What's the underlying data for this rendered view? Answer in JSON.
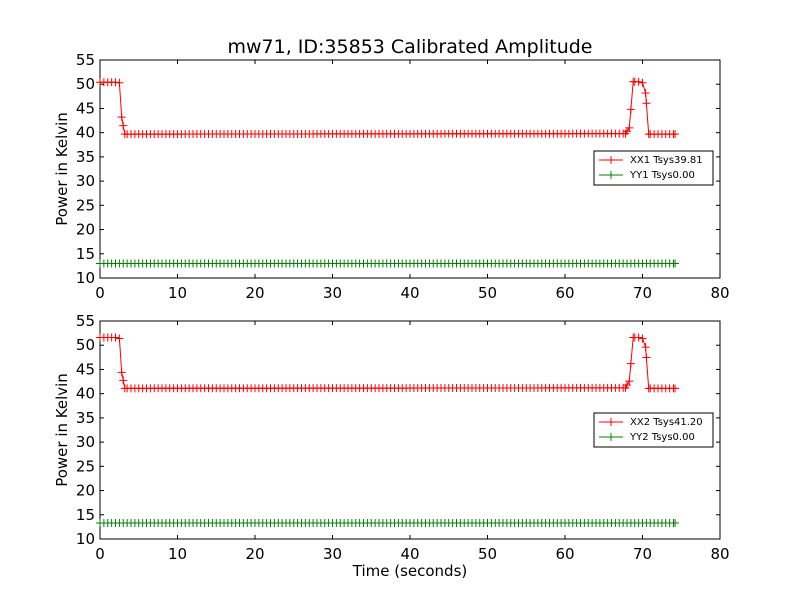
{
  "title": "mw71, ID:35853 Calibrated Amplitude",
  "chart_data": [
    {
      "type": "line",
      "title": "mw71, ID:35853 Calibrated Amplitude",
      "xlabel": "",
      "ylabel": "Power in Kelvin",
      "xlim": [
        0,
        80
      ],
      "ylim": [
        10,
        55
      ],
      "xticks": [
        "0",
        "10",
        "20",
        "30",
        "40",
        "50",
        "60",
        "70",
        "80"
      ],
      "yticks": [
        "10",
        "15",
        "20",
        "25",
        "30",
        "35",
        "40",
        "45",
        "50",
        "55"
      ],
      "grid": false,
      "legend_position": "center-right",
      "series": [
        {
          "name": "XX1 Tsys39.81",
          "color": "#ff0000",
          "marker": "plus",
          "levels": {
            "high": 50.4,
            "low": 39.7
          },
          "points": [
            [
              0.0,
              50.4
            ],
            [
              0.5,
              50.4
            ],
            [
              1.0,
              50.4
            ],
            [
              1.5,
              50.4
            ],
            [
              2.0,
              50.4
            ],
            [
              2.5,
              50.3
            ],
            [
              2.8,
              43.2
            ],
            [
              3.2,
              39.7
            ],
            [
              67.8,
              39.8
            ],
            [
              68.3,
              41.0
            ],
            [
              68.8,
              50.5
            ],
            [
              69.5,
              50.5
            ],
            [
              70.0,
              50.3
            ],
            [
              70.4,
              48.2
            ],
            [
              70.8,
              39.7
            ],
            [
              74.2,
              39.7
            ]
          ]
        },
        {
          "name": "YY1 Tsys0.00",
          "color": "#008000",
          "marker": "plus",
          "points": [
            [
              0.0,
              13.0
            ],
            [
              74.2,
              13.0
            ]
          ]
        }
      ],
      "x_end": 74.2,
      "x_step": 0.5
    },
    {
      "type": "line",
      "title": "",
      "xlabel": "Time (seconds)",
      "ylabel": "Power in Kelvin",
      "xlim": [
        0,
        80
      ],
      "ylim": [
        10,
        55
      ],
      "xticks": [
        "0",
        "10",
        "20",
        "30",
        "40",
        "50",
        "60",
        "70",
        "80"
      ],
      "yticks": [
        "10",
        "15",
        "20",
        "25",
        "30",
        "35",
        "40",
        "45",
        "50",
        "55"
      ],
      "grid": false,
      "legend_position": "center-right",
      "series": [
        {
          "name": "XX2 Tsys41.20",
          "color": "#ff0000",
          "marker": "plus",
          "levels": {
            "high": 51.6,
            "low": 41.1
          },
          "points": [
            [
              0.0,
              51.6
            ],
            [
              0.5,
              51.6
            ],
            [
              1.0,
              51.6
            ],
            [
              1.5,
              51.6
            ],
            [
              2.0,
              51.6
            ],
            [
              2.5,
              51.4
            ],
            [
              2.8,
              44.4
            ],
            [
              3.2,
              41.1
            ],
            [
              67.8,
              41.2
            ],
            [
              68.3,
              42.6
            ],
            [
              68.8,
              51.6
            ],
            [
              69.5,
              51.6
            ],
            [
              70.0,
              51.4
            ],
            [
              70.4,
              49.6
            ],
            [
              70.8,
              41.1
            ],
            [
              74.2,
              41.1
            ]
          ]
        },
        {
          "name": "YY2 Tsys0.00",
          "color": "#008000",
          "marker": "plus",
          "points": [
            [
              0.0,
              13.3
            ],
            [
              74.2,
              13.3
            ]
          ]
        }
      ],
      "x_end": 74.2,
      "x_step": 0.5
    }
  ]
}
